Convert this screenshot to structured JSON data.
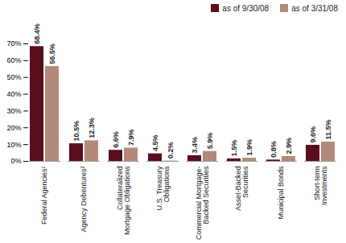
{
  "chart_data": {
    "type": "bar",
    "categories": [
      "Federal Agencies¹",
      "Agency Debentures²",
      "Collateralized Mortgage Obligations",
      "U.S. Treasury Obligations",
      "Commercial Mortgage-Backed Securities",
      "Asset-Backed Securities",
      "Municipal Bonds",
      "Short-term Investments"
    ],
    "series": [
      {
        "name": "as of 9/30/08",
        "color": "#5a0d1c",
        "values": [
          68.4,
          10.5,
          6.6,
          4.5,
          3.4,
          1.5,
          0.8,
          9.6
        ],
        "value_labels": [
          "68.4%",
          "10.5%",
          "6.6%",
          "4.5%",
          "3.4%",
          "1.5%",
          "0.8%",
          "9.6%"
        ]
      },
      {
        "name": "as of 3/31/08",
        "color": "#b3897a",
        "values": [
          56.5,
          12.3,
          7.9,
          0.2,
          5.9,
          1.9,
          2.9,
          11.5
        ],
        "value_labels": [
          "56.5%",
          "12.3%",
          "7.9%",
          "0.2%",
          "5.9%",
          "1.9%",
          "2.9%",
          "11.5%"
        ]
      }
    ],
    "ylim": [
      0,
      70
    ],
    "yticks": [
      {
        "value": 0,
        "label": "0%"
      },
      {
        "value": 10,
        "label": "10%"
      },
      {
        "value": 20,
        "label": "20%"
      },
      {
        "value": 30,
        "label": "30%"
      },
      {
        "value": 40,
        "label": "40%"
      },
      {
        "value": 50,
        "label": "50%"
      },
      {
        "value": 60,
        "label": "60%"
      },
      {
        "value": 70,
        "label": "70%"
      }
    ],
    "grid": false,
    "legend": "top-right",
    "data_labels": true
  }
}
